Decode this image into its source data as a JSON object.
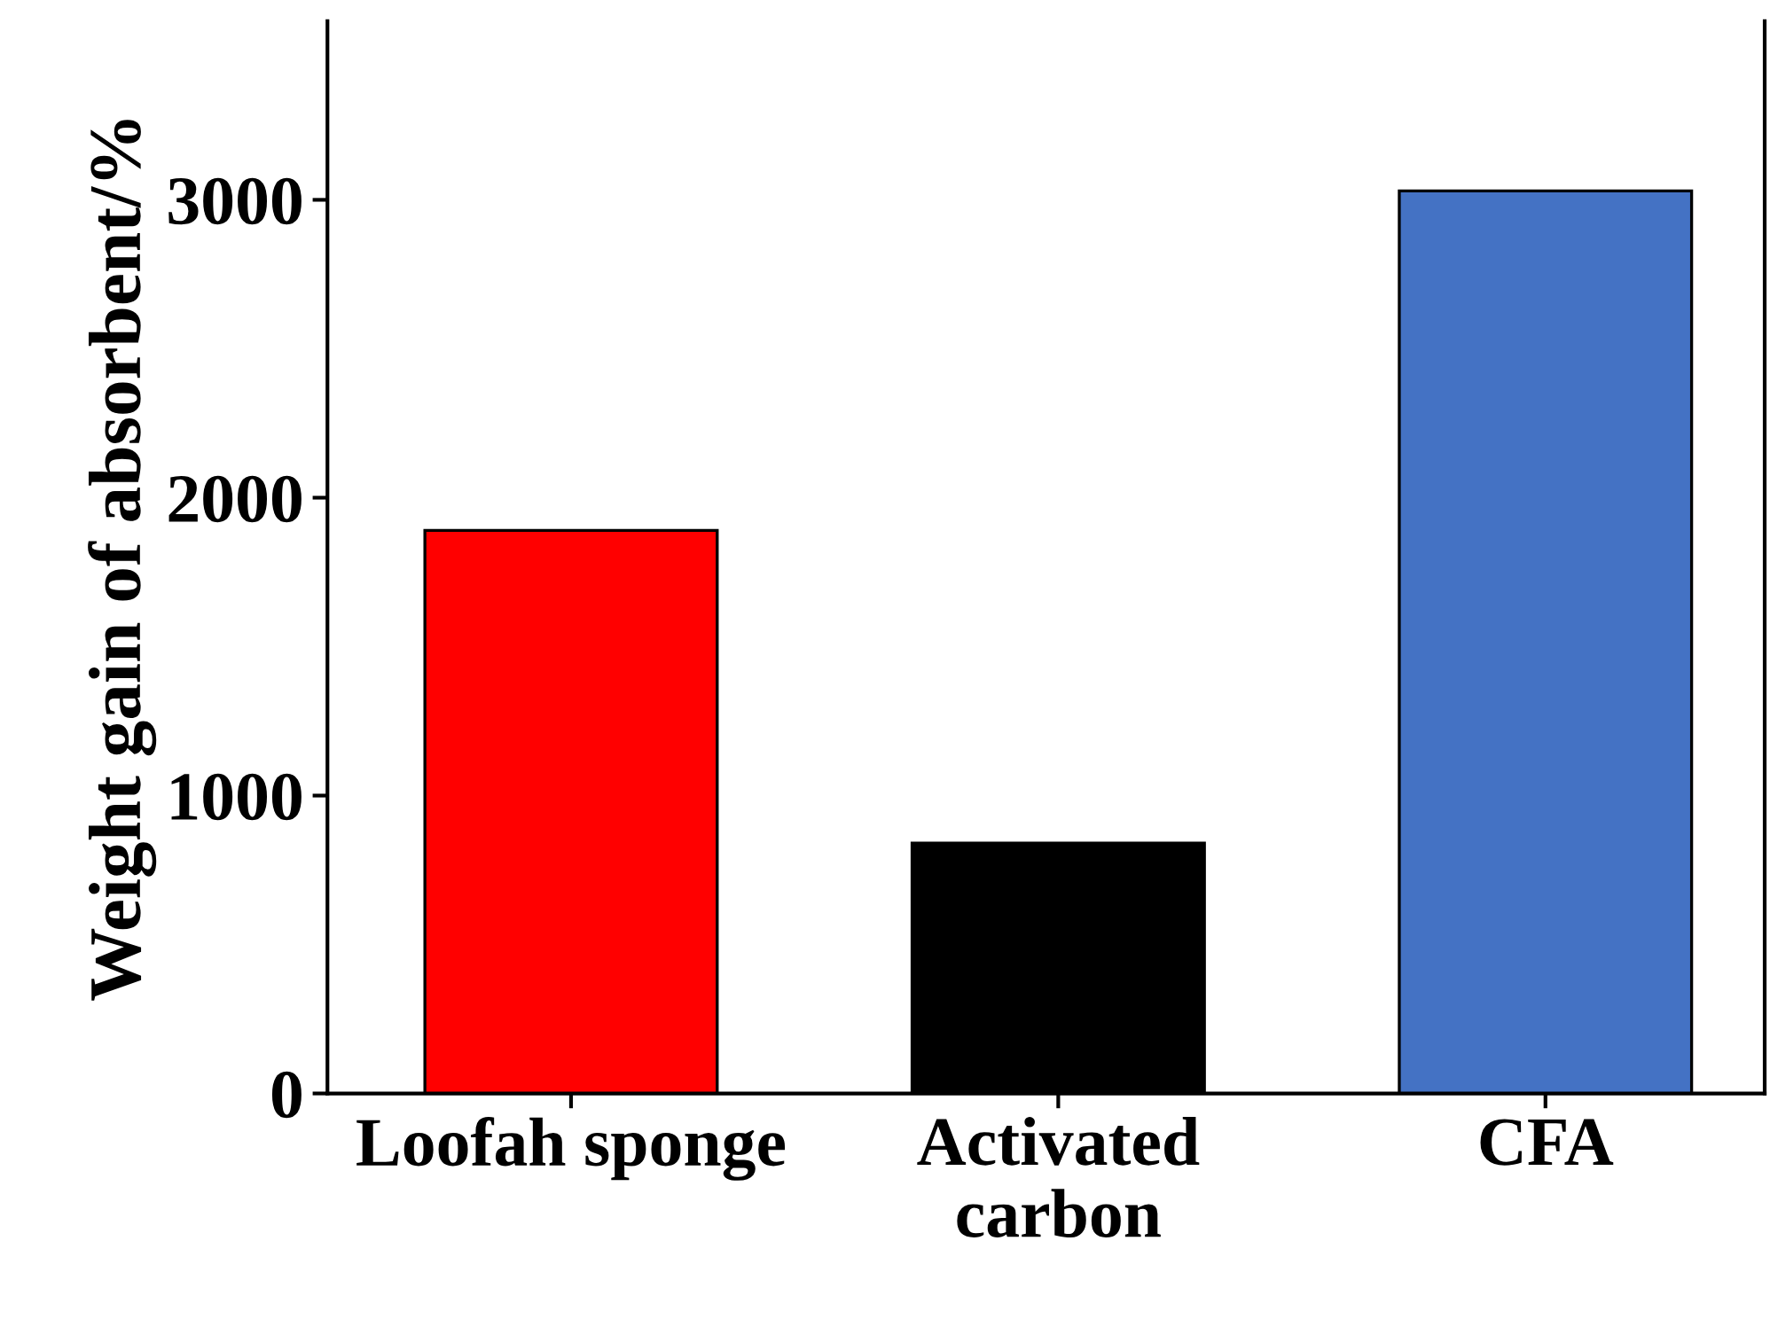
{
  "chart_data": {
    "type": "bar",
    "ylabel": "Weight gain of absorbent/%",
    "categories": [
      "Loofah sponge",
      "Activated\ncarbon",
      "CFA"
    ],
    "values": [
      1890,
      840,
      3030
    ],
    "colors": [
      "#ff0000",
      "#000000",
      "#4472c4"
    ],
    "ylim": [
      0,
      3600
    ],
    "yticks": [
      0,
      1000,
      2000,
      3000
    ],
    "grid": false
  }
}
